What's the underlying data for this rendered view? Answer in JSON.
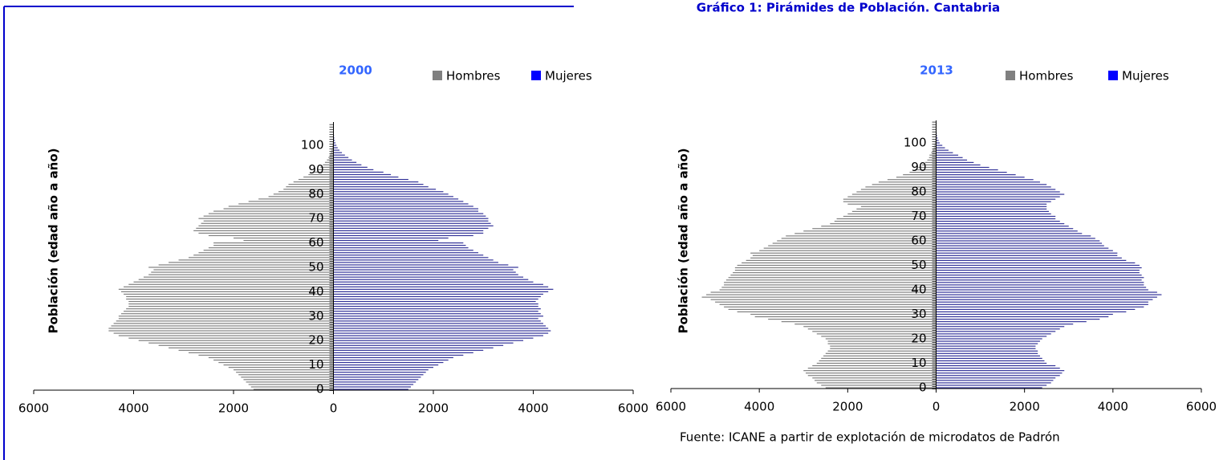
{
  "page_title": "Gráfico 1: Pirámides de Población. Cantabria",
  "source": "Fuente: ICANE a partir de explotación de microdatos de Padrón",
  "chart_data": [
    {
      "type": "pyramid",
      "title": "2000",
      "y_label": "Población (edad año a año)",
      "categories": [
        0,
        null,
        null,
        null,
        null,
        null,
        null,
        null,
        null,
        null,
        10,
        null,
        null,
        null,
        null,
        null,
        null,
        null,
        null,
        null,
        20,
        null,
        null,
        null,
        null,
        null,
        null,
        null,
        null,
        null,
        30,
        null,
        null,
        null,
        null,
        null,
        null,
        null,
        null,
        null,
        40,
        null,
        null,
        null,
        null,
        null,
        null,
        null,
        null,
        null,
        50,
        null,
        null,
        null,
        null,
        null,
        null,
        null,
        null,
        null,
        60,
        null,
        null,
        null,
        null,
        null,
        null,
        null,
        null,
        null,
        70,
        null,
        null,
        null,
        null,
        null,
        null,
        null,
        null,
        null,
        80,
        null,
        null,
        null,
        null,
        null,
        null,
        null,
        null,
        null,
        90,
        null,
        null,
        null,
        null,
        null,
        null,
        null,
        null,
        null,
        100,
        null,
        null,
        null,
        null,
        null,
        null,
        null,
        null,
        null
      ],
      "xlim": [
        -6000,
        6000
      ],
      "xticks": [
        {
          "value": -6000,
          "label": "6000"
        },
        {
          "value": -4000,
          "label": "4000"
        },
        {
          "value": -2000,
          "label": "2000"
        },
        0,
        2000,
        4000,
        6000
      ],
      "series": [
        {
          "name": "Hombres",
          "color": "#808080",
          "side": "left",
          "values": [
            1600,
            1650,
            1700,
            1750,
            1800,
            1850,
            1900,
            1950,
            2000,
            2100,
            2200,
            2300,
            2400,
            2500,
            2700,
            2900,
            3100,
            3300,
            3500,
            3700,
            3900,
            4100,
            4300,
            4400,
            4500,
            4500,
            4450,
            4400,
            4350,
            4300,
            4300,
            4250,
            4200,
            4150,
            4100,
            4100,
            4100,
            4150,
            4150,
            4200,
            4250,
            4300,
            4200,
            4100,
            4000,
            3900,
            3800,
            3700,
            3650,
            3600,
            3700,
            3500,
            3300,
            3100,
            2900,
            2800,
            2700,
            2600,
            2500,
            2400,
            2400,
            1800,
            2000,
            2500,
            2700,
            2800,
            2750,
            2700,
            2650,
            2600,
            2700,
            2600,
            2500,
            2400,
            2200,
            2100,
            1900,
            1700,
            1500,
            1300,
            1200,
            1100,
            1000,
            950,
            900,
            800,
            700,
            600,
            500,
            400,
            320,
            260,
            210,
            170,
            130,
            100,
            75,
            55,
            40,
            28,
            20,
            14,
            9,
            6,
            4,
            2,
            1,
            1,
            0,
            0
          ]
        },
        {
          "name": "Mujeres",
          "color": "#0000ff",
          "bar_color": "#333399",
          "side": "right",
          "values": [
            1500,
            1550,
            1600,
            1650,
            1700,
            1750,
            1800,
            1850,
            1900,
            2000,
            2100,
            2200,
            2300,
            2400,
            2600,
            2800,
            3000,
            3200,
            3400,
            3600,
            3800,
            4000,
            4200,
            4300,
            4350,
            4300,
            4250,
            4200,
            4150,
            4100,
            4200,
            4150,
            4100,
            4150,
            4100,
            4100,
            4050,
            4100,
            4150,
            4200,
            4300,
            4400,
            4300,
            4200,
            4000,
            3900,
            3800,
            3700,
            3650,
            3600,
            3700,
            3500,
            3300,
            3200,
            3100,
            3000,
            2900,
            2800,
            2700,
            2650,
            2600,
            2100,
            2300,
            2800,
            3000,
            3000,
            3100,
            3200,
            3150,
            3100,
            3100,
            3050,
            3000,
            2900,
            2900,
            2800,
            2700,
            2600,
            2500,
            2400,
            2300,
            2200,
            2050,
            1900,
            1800,
            1700,
            1500,
            1300,
            1150,
            1000,
            800,
            680,
            560,
            460,
            370,
            300,
            230,
            170,
            120,
            85,
            60,
            42,
            28,
            18,
            12,
            8,
            5,
            3,
            2,
            1
          ]
        }
      ]
    },
    {
      "type": "pyramid",
      "title": "2013",
      "y_label": "Población (edad año a año)",
      "categories": [
        0,
        null,
        null,
        null,
        null,
        null,
        null,
        null,
        null,
        null,
        10,
        null,
        null,
        null,
        null,
        null,
        null,
        null,
        null,
        null,
        20,
        null,
        null,
        null,
        null,
        null,
        null,
        null,
        null,
        null,
        30,
        null,
        null,
        null,
        null,
        null,
        null,
        null,
        null,
        null,
        40,
        null,
        null,
        null,
        null,
        null,
        null,
        null,
        null,
        null,
        50,
        null,
        null,
        null,
        null,
        null,
        null,
        null,
        null,
        null,
        60,
        null,
        null,
        null,
        null,
        null,
        null,
        null,
        null,
        null,
        70,
        null,
        null,
        null,
        null,
        null,
        null,
        null,
        null,
        null,
        80,
        null,
        null,
        null,
        null,
        null,
        null,
        null,
        null,
        null,
        90,
        null,
        null,
        null,
        null,
        null,
        null,
        null,
        null,
        null,
        100,
        null,
        null,
        null,
        null,
        null,
        null,
        null,
        null,
        null
      ],
      "xlim": [
        -6000,
        6000
      ],
      "xticks": [
        {
          "value": -6000,
          "label": "6000"
        },
        {
          "value": -4000,
          "label": "4000"
        },
        {
          "value": -2000,
          "label": "2000"
        },
        0,
        2000,
        4000,
        6000
      ],
      "series": [
        {
          "name": "Hombres",
          "color": "#808080",
          "side": "left",
          "values": [
            2500,
            2600,
            2700,
            2750,
            2800,
            2900,
            2950,
            3000,
            2900,
            2800,
            2700,
            2650,
            2600,
            2550,
            2500,
            2450,
            2400,
            2400,
            2450,
            2450,
            2500,
            2600,
            2700,
            2800,
            2900,
            3000,
            3200,
            3500,
            3800,
            4100,
            4200,
            4500,
            4700,
            4800,
            4900,
            5000,
            5100,
            5300,
            5200,
            5100,
            4900,
            4850,
            4800,
            4800,
            4750,
            4700,
            4650,
            4600,
            4550,
            4550,
            4500,
            4400,
            4300,
            4200,
            4150,
            4200,
            4000,
            3900,
            3800,
            3700,
            3600,
            3500,
            3400,
            3200,
            3000,
            2800,
            2600,
            2400,
            2300,
            2250,
            2100,
            2000,
            1900,
            1800,
            1700,
            2000,
            2100,
            2100,
            2000,
            1900,
            1800,
            1700,
            1600,
            1450,
            1300,
            1100,
            900,
            750,
            600,
            480,
            400,
            320,
            250,
            200,
            160,
            150,
            110,
            80,
            55,
            40,
            30,
            20,
            13,
            8,
            5,
            3,
            2,
            1,
            1,
            0
          ]
        },
        {
          "name": "Mujeres",
          "color": "#0000ff",
          "bar_color": "#333399",
          "side": "right",
          "values": [
            2400,
            2500,
            2600,
            2650,
            2700,
            2800,
            2850,
            2900,
            2800,
            2700,
            2500,
            2450,
            2400,
            2350,
            2300,
            2300,
            2250,
            2250,
            2300,
            2350,
            2400,
            2500,
            2600,
            2700,
            2800,
            2900,
            3100,
            3400,
            3700,
            3900,
            4000,
            4300,
            4500,
            4700,
            4800,
            4800,
            4900,
            5000,
            5100,
            5000,
            4800,
            4750,
            4700,
            4700,
            4650,
            4700,
            4650,
            4600,
            4600,
            4650,
            4600,
            4500,
            4300,
            4200,
            4100,
            4100,
            4000,
            3900,
            3800,
            3750,
            3700,
            3600,
            3500,
            3300,
            3200,
            3100,
            3000,
            2900,
            2800,
            2700,
            2700,
            2600,
            2550,
            2500,
            2500,
            2500,
            2600,
            2700,
            2800,
            2900,
            2800,
            2700,
            2600,
            2500,
            2350,
            2200,
            2000,
            1800,
            1600,
            1400,
            1200,
            1000,
            850,
            700,
            600,
            500,
            380,
            280,
            200,
            140,
            80,
            55,
            35,
            22,
            14,
            9,
            5,
            3,
            2,
            1
          ]
        }
      ]
    }
  ]
}
